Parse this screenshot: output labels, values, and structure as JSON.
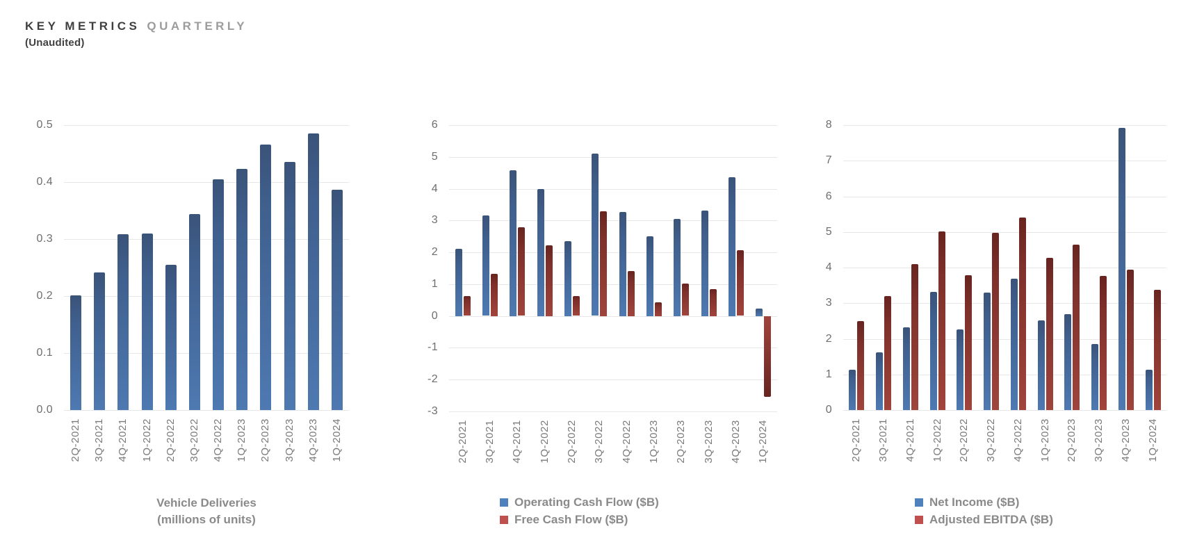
{
  "header": {
    "title_primary": "KEY METRICS",
    "title_secondary": "QUARTERLY",
    "subtitle": "(Unaudited)"
  },
  "colors": {
    "legend_blue": "#4F81BD",
    "legend_red": "#C0504D",
    "blue_bar_top": "#3A5379",
    "blue_bar_mid": "#40608E",
    "blue_bar_bottom": "#4E79B1",
    "red_bar_top": "#682420",
    "red_bar_mid": "#7E302A",
    "red_bar_bottom": "#A0443C",
    "gridline": "#E7E7E7",
    "axis_text": "#6E6E6E",
    "xaxis_text": "#7A7A7A",
    "caption_text": "#8A8A8A",
    "title_text": "#3F3F3F",
    "title_secondary_text": "#9C9C9C"
  },
  "chart_data": [
    {
      "id": "vehicle-deliveries",
      "type": "bar",
      "title": "Vehicle Deliveries (millions of units)",
      "caption_lines": [
        "Vehicle Deliveries",
        "(millions of units)"
      ],
      "categories": [
        "2Q-2021",
        "3Q-2021",
        "4Q-2021",
        "1Q-2022",
        "2Q-2022",
        "3Q-2022",
        "4Q-2022",
        "1Q-2023",
        "2Q-2023",
        "3Q-2023",
        "4Q-2023",
        "1Q-2024"
      ],
      "series": [
        {
          "name": "Vehicle Deliveries (millions of units)",
          "color": "blue",
          "values": [
            0.201,
            0.241,
            0.309,
            0.31,
            0.255,
            0.344,
            0.405,
            0.423,
            0.466,
            0.435,
            0.485,
            0.387
          ]
        }
      ],
      "ylim": [
        0,
        0.5
      ],
      "ytick_labels": [
        "0.5",
        "0.4",
        "0.3",
        "0.2",
        "0.1",
        "0.0"
      ],
      "grid": true,
      "legend": null,
      "legend_position": null
    },
    {
      "id": "cash-flow",
      "type": "bar",
      "title": "Operating Cash Flow vs Free Cash Flow ($B)",
      "caption_lines": null,
      "categories": [
        "2Q-2021",
        "3Q-2021",
        "4Q-2021",
        "1Q-2022",
        "2Q-2022",
        "3Q-2022",
        "4Q-2022",
        "1Q-2023",
        "2Q-2023",
        "3Q-2023",
        "4Q-2023",
        "1Q-2024"
      ],
      "series": [
        {
          "name": "Operating Cash Flow ($B)",
          "color": "blue",
          "values": [
            2.12,
            3.15,
            4.59,
            4.0,
            2.35,
            5.1,
            3.28,
            2.51,
            3.06,
            3.31,
            4.37,
            0.24
          ]
        },
        {
          "name": "Free Cash Flow ($B)",
          "color": "red",
          "values": [
            0.62,
            1.33,
            2.78,
            2.23,
            0.62,
            3.3,
            1.42,
            0.44,
            1.01,
            0.85,
            2.06,
            -2.53
          ]
        }
      ],
      "ylim": [
        -3,
        6
      ],
      "ytick_labels": [
        "6",
        "5",
        "4",
        "3",
        "2",
        "1",
        "0",
        "-1",
        "-2",
        "-3"
      ],
      "grid": true,
      "legend": [
        "Operating Cash Flow ($B)",
        "Free Cash Flow ($B)"
      ],
      "legend_position": "bottom"
    },
    {
      "id": "income-ebitda",
      "type": "bar",
      "title": "Net Income vs Adjusted EBITDA ($B)",
      "caption_lines": null,
      "categories": [
        "2Q-2021",
        "3Q-2021",
        "4Q-2021",
        "1Q-2022",
        "2Q-2022",
        "3Q-2022",
        "4Q-2022",
        "1Q-2023",
        "2Q-2023",
        "3Q-2023",
        "4Q-2023",
        "1Q-2024"
      ],
      "series": [
        {
          "name": "Net Income ($B)",
          "color": "blue",
          "values": [
            1.14,
            1.62,
            2.32,
            3.32,
            2.26,
            3.29,
            3.69,
            2.51,
            2.7,
            1.85,
            7.93,
            1.13
          ]
        },
        {
          "name": "Adjusted EBITDA ($B)",
          "color": "red",
          "values": [
            2.49,
            3.2,
            4.09,
            5.02,
            3.79,
            4.97,
            5.4,
            4.27,
            4.65,
            3.76,
            3.95,
            3.38
          ]
        }
      ],
      "ylim": [
        0,
        8
      ],
      "ytick_labels": [
        "8",
        "7",
        "6",
        "5",
        "4",
        "3",
        "2",
        "1",
        "0"
      ],
      "grid": true,
      "legend": [
        "Net Income ($B)",
        "Adjusted EBITDA ($B)"
      ],
      "legend_position": "bottom"
    }
  ]
}
